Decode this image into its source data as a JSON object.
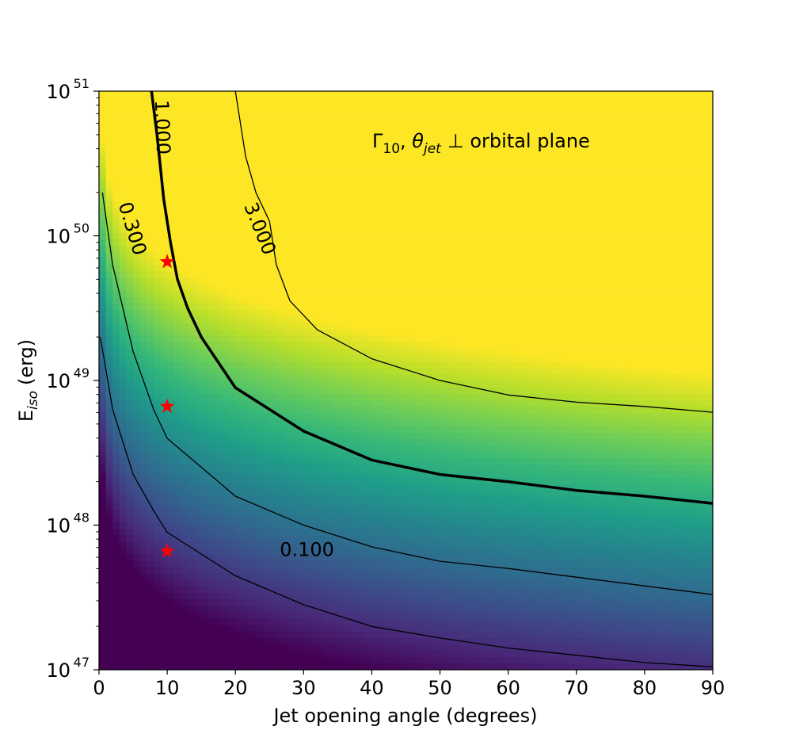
{
  "chart_data": {
    "type": "heatmap",
    "annotation": {
      "gamma": "Γ",
      "gamma_sub": "10",
      "sep": ", ",
      "theta": "θ",
      "theta_sub": "jet",
      "rest": "⊥ orbital plane"
    },
    "xlabel": "Jet opening angle (degrees)",
    "ylabel_main": "E",
    "ylabel_sub": "iso",
    "ylabel_unit": "(erg)",
    "xlim": [
      0,
      90
    ],
    "ylim_log10": [
      47,
      51
    ],
    "y_scale": "log",
    "grid": false,
    "colormap": "viridis",
    "x_ticks": [
      0,
      10,
      20,
      30,
      40,
      50,
      60,
      70,
      80,
      90
    ],
    "y_ticks": [
      {
        "base": "10",
        "exp": "47",
        "value_log10": 47
      },
      {
        "base": "10",
        "exp": "48",
        "value_log10": 48
      },
      {
        "base": "10",
        "exp": "49",
        "value_log10": 49
      },
      {
        "base": "10",
        "exp": "50",
        "value_log10": 50
      },
      {
        "base": "10",
        "exp": "51",
        "value_log10": 51
      }
    ],
    "contours": [
      {
        "level": 0.1,
        "label": "0.100",
        "bold": false,
        "points": [
          [
            0.2,
            49.3
          ],
          [
            2,
            48.8
          ],
          [
            5,
            48.35
          ],
          [
            8,
            48.1
          ],
          [
            10,
            47.95
          ],
          [
            15,
            47.8
          ],
          [
            20,
            47.65
          ],
          [
            25,
            47.55
          ],
          [
            30,
            47.45
          ],
          [
            40,
            47.3
          ],
          [
            50,
            47.22
          ],
          [
            60,
            47.15
          ],
          [
            70,
            47.1
          ],
          [
            80,
            47.05
          ],
          [
            90,
            47.02
          ]
        ]
      },
      {
        "level": 0.3,
        "label": "0.300",
        "bold": false,
        "points": [
          [
            0.5,
            50.3
          ],
          [
            2,
            49.8
          ],
          [
            5,
            49.2
          ],
          [
            8,
            48.8
          ],
          [
            10,
            48.6
          ],
          [
            15,
            48.4
          ],
          [
            20,
            48.2
          ],
          [
            30,
            48.0
          ],
          [
            40,
            47.85
          ],
          [
            50,
            47.75
          ],
          [
            60,
            47.7
          ],
          [
            70,
            47.64
          ],
          [
            80,
            47.58
          ],
          [
            90,
            47.52
          ]
        ]
      },
      {
        "level": 1.0,
        "label": "1.000",
        "bold": true,
        "points": [
          [
            7.7,
            51.0
          ],
          [
            8.5,
            50.7
          ],
          [
            9.5,
            50.25
          ],
          [
            10.5,
            49.95
          ],
          [
            11.5,
            49.7
          ],
          [
            13,
            49.5
          ],
          [
            15,
            49.3
          ],
          [
            20,
            48.95
          ],
          [
            30,
            48.65
          ],
          [
            40,
            48.45
          ],
          [
            50,
            48.35
          ],
          [
            60,
            48.3
          ],
          [
            70,
            48.24
          ],
          [
            80,
            48.2
          ],
          [
            90,
            48.15
          ]
        ]
      },
      {
        "level": 3.0,
        "label": "3.000",
        "bold": false,
        "points": [
          [
            20,
            51.0
          ],
          [
            21.5,
            50.55
          ],
          [
            23,
            50.3
          ],
          [
            25,
            50.1
          ],
          [
            26,
            49.8
          ],
          [
            28,
            49.55
          ],
          [
            32,
            49.35
          ],
          [
            40,
            49.15
          ],
          [
            50,
            49.0
          ],
          [
            60,
            48.9
          ],
          [
            70,
            48.85
          ],
          [
            80,
            48.82
          ],
          [
            90,
            48.78
          ]
        ]
      }
    ],
    "contour_labels": [
      {
        "text": "0.100",
        "x": 30.5,
        "y": 47.83,
        "rotation": 0
      },
      {
        "text": "0.300",
        "x": 4.9,
        "y": 50.05,
        "rotation": 73
      },
      {
        "text": "1.000",
        "x": 9.3,
        "y": 50.75,
        "rotation": 88
      },
      {
        "text": "3.000",
        "x": 23.6,
        "y": 50.05,
        "rotation": 68
      }
    ],
    "markers": [
      {
        "x": 10,
        "y": 47.82,
        "color": "#ff0000",
        "shape": "star"
      },
      {
        "x": 10,
        "y": 48.82,
        "color": "#ff0000",
        "shape": "star"
      },
      {
        "x": 10,
        "y": 49.82,
        "color": "#ff0000",
        "shape": "star"
      }
    ]
  }
}
